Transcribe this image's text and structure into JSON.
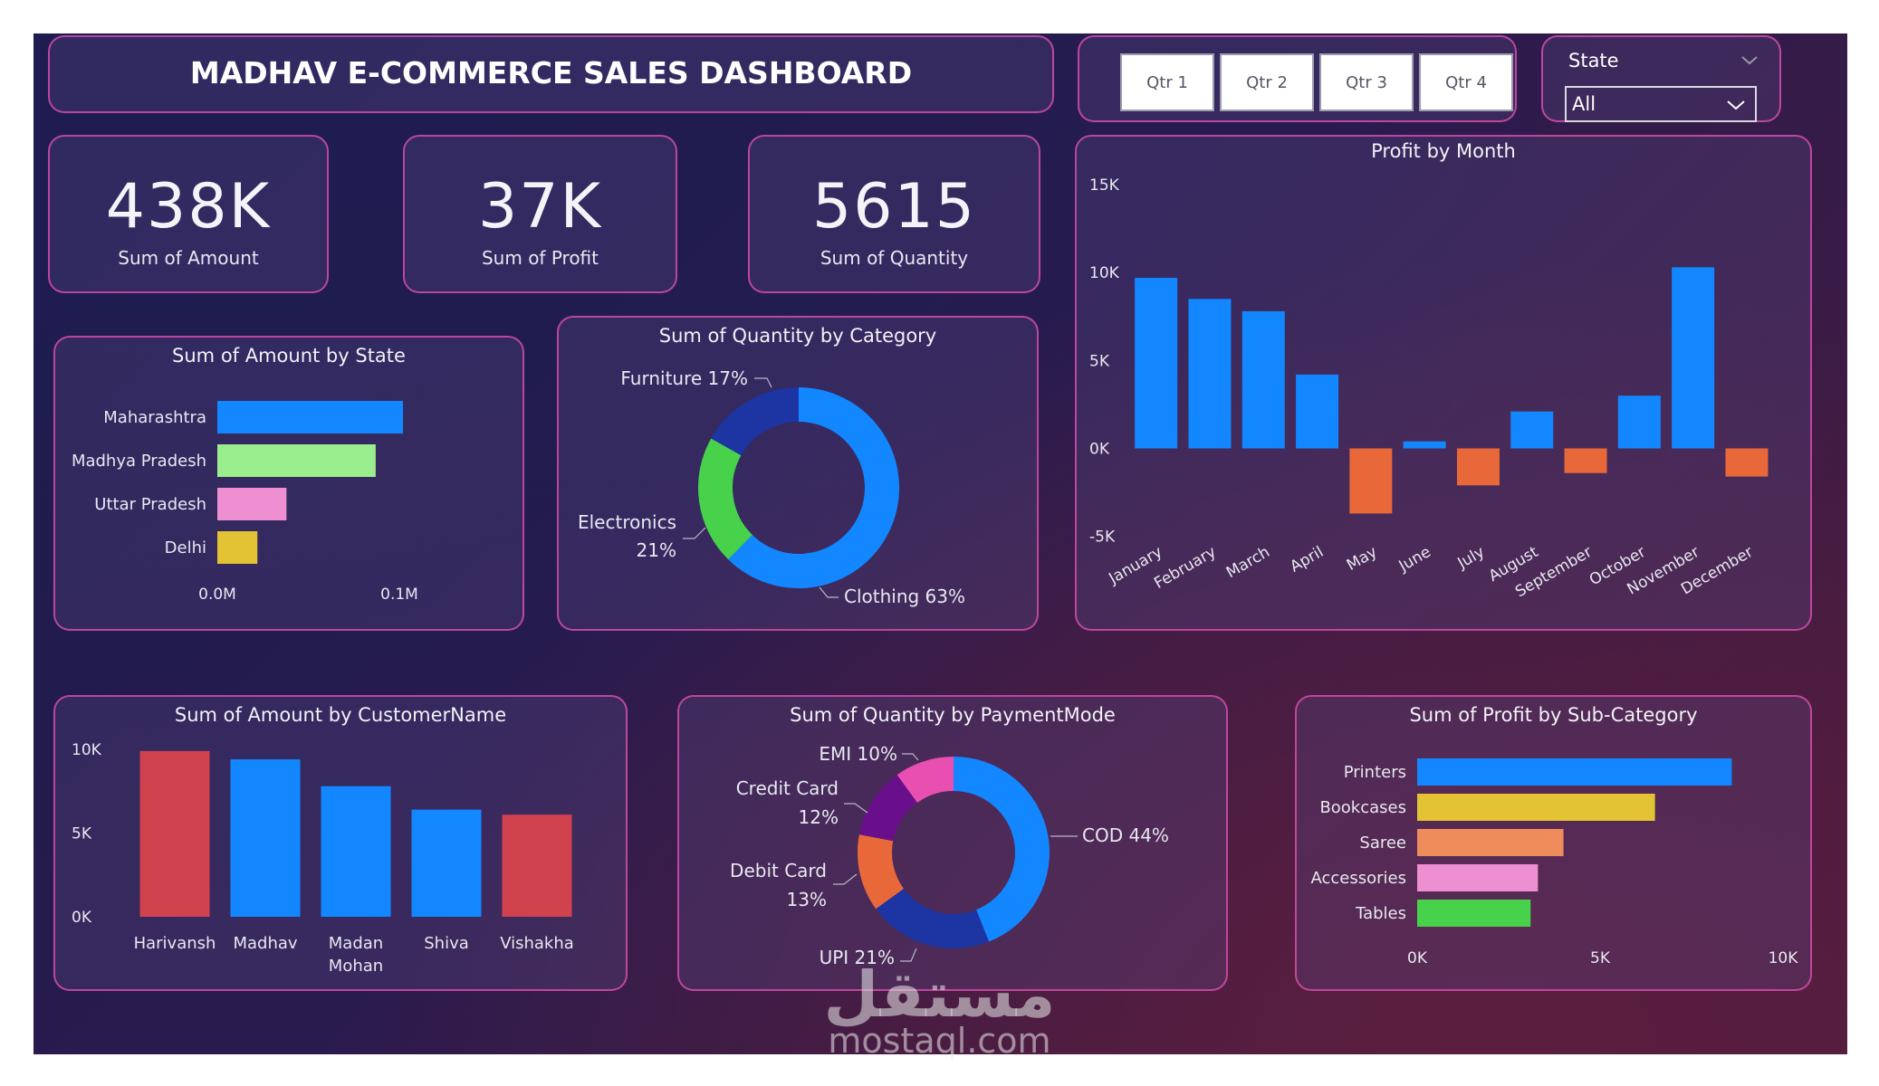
{
  "header": {
    "title": "MADHAV E-COMMERCE SALES DASHBOARD"
  },
  "quarter_slicer": {
    "buttons": [
      "Qtr 1",
      "Qtr 2",
      "Qtr 3",
      "Qtr 4"
    ]
  },
  "state_slicer": {
    "label": "State",
    "selected": "All"
  },
  "kpis": [
    {
      "value": "438K",
      "label": "Sum of Amount"
    },
    {
      "value": "37K",
      "label": "Sum of Profit"
    },
    {
      "value": "5615",
      "label": "Sum of Quantity"
    }
  ],
  "colors": {
    "blue": "#1387ff",
    "dark_blue": "#1d34a3",
    "orange": "#e8683a",
    "red": "#d0424e",
    "green": "#48d24c",
    "light_green": "#9bee8d",
    "pink": "#ee8fd2",
    "yellow": "#e3c233",
    "salmon": "#ef8c5c",
    "magenta": "#e84fb0",
    "purple": "#6a0f8c",
    "panel_border": "#d44caa"
  },
  "chart_data": [
    {
      "id": "amount_by_state",
      "type": "bar",
      "orientation": "horizontal",
      "title": "Sum of Amount by State",
      "categories": [
        "Maharashtra",
        "Madhya Pradesh",
        "Uttar Pradesh",
        "Delhi"
      ],
      "values": [
        0.102,
        0.087,
        0.038,
        0.022
      ],
      "colors": [
        "#1387ff",
        "#9bee8d",
        "#ee8fd2",
        "#e3c233"
      ],
      "xlim": [
        0,
        0.1
      ],
      "xticks": [
        "0.0M",
        "0.1M"
      ]
    },
    {
      "id": "quantity_by_category",
      "type": "pie",
      "donut": true,
      "title": "Sum of Quantity by Category",
      "labels": [
        "Clothing",
        "Electronics",
        "Furniture"
      ],
      "values": [
        63,
        21,
        17
      ],
      "display_labels": [
        "Clothing 63%",
        "Electronics",
        "21%",
        "Furniture 17%"
      ],
      "colors": [
        "#1387ff",
        "#48d24c",
        "#1d34a3"
      ]
    },
    {
      "id": "profit_by_month",
      "type": "bar",
      "title": "Profit by Month",
      "categories": [
        "January",
        "February",
        "March",
        "April",
        "May",
        "June",
        "July",
        "August",
        "September",
        "October",
        "November",
        "December"
      ],
      "values": [
        9700,
        8500,
        7800,
        4200,
        -3700,
        400,
        -2100,
        2100,
        -1400,
        3000,
        10300,
        -1600
      ],
      "ylim": [
        -5000,
        15000
      ],
      "yticks": [
        "-5K",
        "0K",
        "5K",
        "10K",
        "15K"
      ],
      "positive_color": "#1387ff",
      "negative_color": "#e8683a"
    },
    {
      "id": "amount_by_customer",
      "type": "bar",
      "title": "Sum of Amount by CustomerName",
      "categories": [
        "Harivansh",
        "Madhav",
        "Madan Mohan",
        "Shiva",
        "Vishakha"
      ],
      "tick_lines": [
        [
          "Harivansh"
        ],
        [
          "Madhav"
        ],
        [
          "Madan",
          "Mohan"
        ],
        [
          "Shiva"
        ],
        [
          "Vishakha"
        ]
      ],
      "values": [
        9900,
        9400,
        7800,
        6400,
        6100
      ],
      "colors": [
        "#d0424e",
        "#1387ff",
        "#1387ff",
        "#1387ff",
        "#d0424e"
      ],
      "ylim": [
        0,
        10000
      ],
      "yticks": [
        "0K",
        "5K",
        "10K"
      ]
    },
    {
      "id": "quantity_by_payment",
      "type": "pie",
      "donut": true,
      "title": "Sum of Quantity by PaymentMode",
      "labels": [
        "COD",
        "UPI",
        "Debit Card",
        "Credit Card",
        "EMI"
      ],
      "values": [
        44,
        21,
        13,
        12,
        10
      ],
      "display_labels": [
        "COD 44%",
        "UPI 21%",
        "Debit Card",
        "13%",
        "Credit Card",
        "12%",
        "EMI 10%"
      ],
      "colors": [
        "#1387ff",
        "#1d34a3",
        "#e8683a",
        "#6a0f8c",
        "#e84fb0"
      ]
    },
    {
      "id": "profit_by_subcategory",
      "type": "bar",
      "orientation": "horizontal",
      "title": "Sum of Profit by Sub-Category",
      "categories": [
        "Printers",
        "Bookcases",
        "Saree",
        "Accessories",
        "Tables"
      ],
      "values": [
        8600,
        6500,
        4000,
        3300,
        3100
      ],
      "colors": [
        "#1387ff",
        "#e3c233",
        "#ef8c5c",
        "#ee8fd2",
        "#48d24c"
      ],
      "xlim": [
        0,
        10000
      ],
      "xticks": [
        "0K",
        "5K",
        "10K"
      ]
    }
  ],
  "watermark": {
    "arabic": "مستقل",
    "latin": "mostaql.com"
  }
}
